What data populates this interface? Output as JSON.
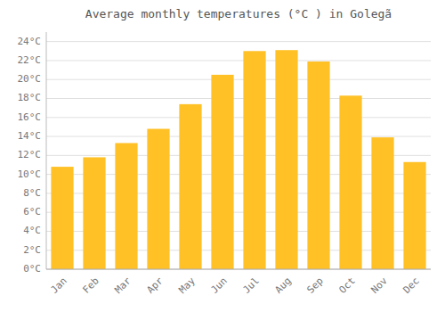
{
  "chart_data": {
    "type": "bar",
    "title": "Average monthly temperatures (°C ) in Golegã",
    "categories": [
      "Jan",
      "Feb",
      "Mar",
      "Apr",
      "May",
      "Jun",
      "Jul",
      "Aug",
      "Sep",
      "Oct",
      "Nov",
      "Dec"
    ],
    "values": [
      10.8,
      11.8,
      13.3,
      14.8,
      17.4,
      20.5,
      23.0,
      23.1,
      21.9,
      18.3,
      13.9,
      11.3
    ],
    "color": "#FFC125",
    "ylim": [
      0,
      25
    ],
    "yticks": [
      {
        "value": 0,
        "label": "0°C"
      },
      {
        "value": 2,
        "label": "2°C"
      },
      {
        "value": 4,
        "label": "4°C"
      },
      {
        "value": 6,
        "label": "6°C"
      },
      {
        "value": 8,
        "label": "8°C"
      },
      {
        "value": 10,
        "label": "10°C"
      },
      {
        "value": 12,
        "label": "12°C"
      },
      {
        "value": 14,
        "label": "14°C"
      },
      {
        "value": 16,
        "label": "16°C"
      },
      {
        "value": 18,
        "label": "18°C"
      },
      {
        "value": 20,
        "label": "20°C"
      },
      {
        "value": 22,
        "label": "22°C"
      },
      {
        "value": 24,
        "label": "24°C"
      }
    ],
    "grid": true
  }
}
